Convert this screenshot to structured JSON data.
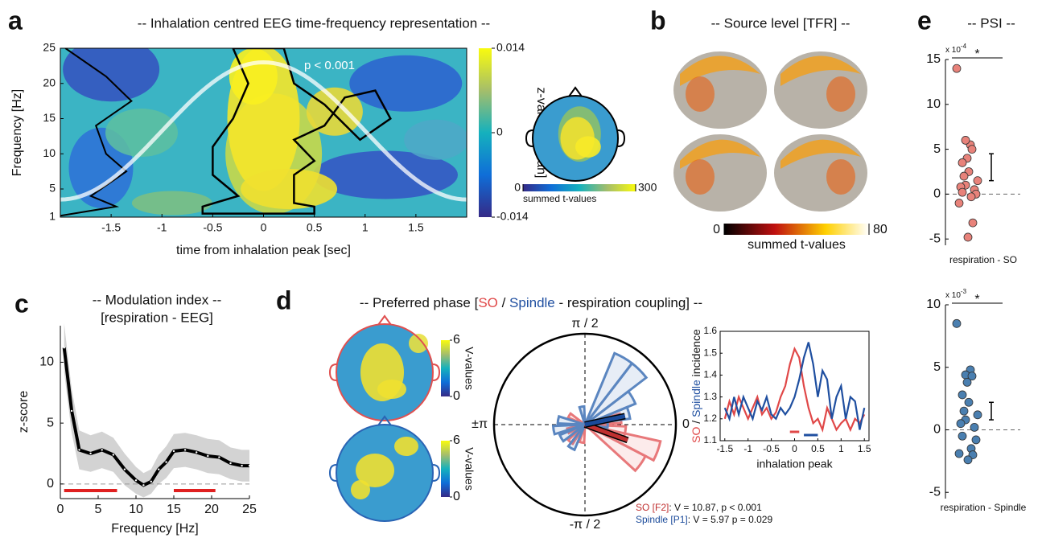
{
  "chart_data": [
    {
      "type": "heatmap",
      "panel": "a",
      "title": "-- Inhalation centred EEG time-frequency representation --",
      "xlabel": "time from inhalation peak [sec]",
      "ylabel": "Frequency [Hz]",
      "xlim": [
        -2,
        2
      ],
      "xticks": [
        -1.5,
        -1,
        -0.5,
        0,
        0.5,
        1,
        1.5
      ],
      "ylim": [
        1,
        25
      ],
      "yticks": [
        1,
        5,
        10,
        15,
        20,
        25
      ],
      "annotation": "p < 0.001",
      "clim": [
        -0.014,
        0.014
      ],
      "cticks": [
        -0.014,
        0,
        0.014
      ],
      "clabel": "z-values [mean]"
    },
    {
      "type": "topoplot",
      "clim": [
        0,
        300
      ],
      "cticks": [
        0,
        300
      ],
      "clabel": "summed t-values"
    },
    {
      "type": "brain",
      "panel": "b",
      "title": "-- Source level [TFR] --",
      "clim": [
        0,
        80
      ],
      "cticks": [
        0,
        80
      ],
      "clabel": "summed t-values"
    },
    {
      "type": "line",
      "panel": "c",
      "title": "-- Modulation index --",
      "subtitle": "[respiration - EEG]",
      "xlabel": "Frequency [Hz]",
      "ylabel": "z-score",
      "x": [
        0.5,
        1.5,
        2.5,
        4,
        5.5,
        7,
        8.5,
        10,
        11,
        12,
        13,
        14,
        15,
        16.5,
        18,
        19.5,
        21,
        22.5,
        24,
        25
      ],
      "values": [
        11.2,
        6,
        2.8,
        2.5,
        2.8,
        2.4,
        1.2,
        0.3,
        -0.1,
        0.2,
        1.2,
        1.8,
        2.7,
        2.8,
        2.6,
        2.3,
        2.2,
        1.7,
        1.5,
        1.5
      ],
      "error": [
        2,
        1.8,
        1.6,
        1.5,
        1.5,
        1.4,
        1.3,
        1.1,
        1,
        1,
        1.2,
        1.3,
        1.4,
        1.4,
        1.4,
        1.4,
        1.4,
        1.3,
        1.3,
        1.3
      ],
      "color": "#000000",
      "band_color": "#d3d3d3",
      "sig_ranges": [
        [
          0.5,
          7.5
        ],
        [
          15,
          20.5
        ]
      ],
      "sig_color": "#e02020",
      "xlim": [
        0,
        25
      ],
      "xticks": [
        0,
        5,
        10,
        15,
        20,
        25
      ],
      "ylim": [
        -1.2,
        13
      ],
      "yticks": [
        0,
        5,
        10
      ]
    },
    {
      "type": "topoplot",
      "clim": [
        0,
        6
      ],
      "cticks": [
        0,
        6
      ],
      "clabel": "V-values",
      "outlines": [
        "#e05050",
        "#2a64b4"
      ]
    },
    {
      "type": "polar",
      "panel": "d",
      "title": [
        "-- Preferred phase [",
        "SO",
        " / ",
        "Spindle",
        "  - respiration coupling] --"
      ],
      "angle_labels": [
        "π / 2",
        "±π",
        "0",
        "-π / 2"
      ],
      "rlim": [
        0,
        1
      ],
      "series": [
        {
          "name": "SO [F2]",
          "stat": ": V = 10.87, p < 0.001",
          "color": "#e8787a",
          "mean_color": "#c03030",
          "angles": [
            -20,
            -35,
            -10,
            10,
            150,
            200,
            230,
            260
          ],
          "values": [
            0.85,
            0.75,
            0.45,
            0.4,
            0.2,
            0.2,
            0.25,
            0.2
          ],
          "mean_angle": -20,
          "mean_length": 0.5
        },
        {
          "name": "Spindle [P1]",
          "stat": ": V = 5.97 p = 0.029",
          "color": "#5b86c0",
          "mean_color": "#1a4a9a",
          "angles": [
            60,
            45,
            30,
            15,
            170,
            190,
            210,
            240,
            100,
            0
          ],
          "values": [
            0.85,
            0.85,
            0.6,
            0.5,
            0.3,
            0.35,
            0.3,
            0.3,
            0.2,
            0.25
          ],
          "mean_angle": 12,
          "mean_length": 0.45
        }
      ]
    },
    {
      "type": "line",
      "xlabel": "inhalation peak",
      "ylabel": [
        "SO",
        " / ",
        "Spindle",
        " incidence"
      ],
      "x": [
        -1.5,
        -1.4,
        -1.3,
        -1.2,
        -1.1,
        -1,
        -0.9,
        -0.8,
        -0.7,
        -0.6,
        -0.5,
        -0.4,
        -0.3,
        -0.2,
        -0.1,
        0,
        0.1,
        0.2,
        0.3,
        0.4,
        0.5,
        0.6,
        0.7,
        0.8,
        0.9,
        1,
        1.1,
        1.2,
        1.3,
        1.4,
        1.5
      ],
      "series": [
        {
          "color": "#e04848",
          "sig_range": [
            -0.1,
            0.1
          ],
          "values": [
            1.2,
            1.28,
            1.22,
            1.3,
            1.25,
            1.2,
            1.25,
            1.3,
            1.22,
            1.25,
            1.2,
            1.23,
            1.3,
            1.35,
            1.45,
            1.52,
            1.48,
            1.35,
            1.25,
            1.18,
            1.2,
            1.15,
            1.25,
            1.2,
            1.15,
            1.18,
            1.2,
            1.15,
            1.2,
            1.18,
            1.22
          ]
        },
        {
          "color": "#1f4fa0",
          "sig_range": [
            0.2,
            0.5
          ],
          "values": [
            1.25,
            1.2,
            1.3,
            1.22,
            1.3,
            1.25,
            1.2,
            1.28,
            1.24,
            1.3,
            1.22,
            1.2,
            1.25,
            1.22,
            1.25,
            1.3,
            1.38,
            1.48,
            1.55,
            1.45,
            1.3,
            1.42,
            1.38,
            1.2,
            1.3,
            1.35,
            1.2,
            1.3,
            1.28,
            1.15,
            1.25
          ]
        }
      ],
      "xlim": [
        -1.6,
        1.6
      ],
      "xticks": [
        -1.5,
        -1,
        -0.5,
        0,
        0.5,
        1,
        1.5
      ],
      "ylim": [
        1.1,
        1.6
      ],
      "yticks": [
        1.1,
        1.2,
        1.3,
        1.4,
        1.5,
        1.6
      ]
    },
    {
      "type": "strip",
      "panel": "e",
      "title": "-- PSI --",
      "scale_label": "x 10",
      "scale_exponent": "-4",
      "star": "*",
      "xlabel": "respiration - SO",
      "color": "#e8827a",
      "values": [
        14,
        5.5,
        6,
        5,
        4,
        3.5,
        2.5,
        2,
        1.5,
        1,
        0.8,
        0.5,
        0.2,
        0,
        -0.3,
        -1,
        -3.2,
        -4.8
      ],
      "mean": 3,
      "mean_error": 1.5,
      "ylim": [
        -5.7,
        15
      ],
      "yticks": [
        -5,
        0,
        5,
        10,
        15
      ]
    },
    {
      "type": "strip",
      "scale_label": "x 10",
      "scale_exponent": "-3",
      "star": "*",
      "xlabel": "respiration - Spindle",
      "color": "#4a7fb0",
      "values": [
        8.5,
        4.8,
        4.4,
        4.3,
        3.8,
        2.8,
        2.2,
        1.5,
        1.2,
        0.8,
        0.5,
        0.2,
        -0.5,
        -0.8,
        -1.5,
        -1.9,
        -2,
        -2.4
      ],
      "mean": 1.5,
      "mean_error": 0.7,
      "ylim": [
        -5.5,
        10
      ],
      "yticks": [
        -5,
        0,
        5,
        10
      ]
    }
  ]
}
